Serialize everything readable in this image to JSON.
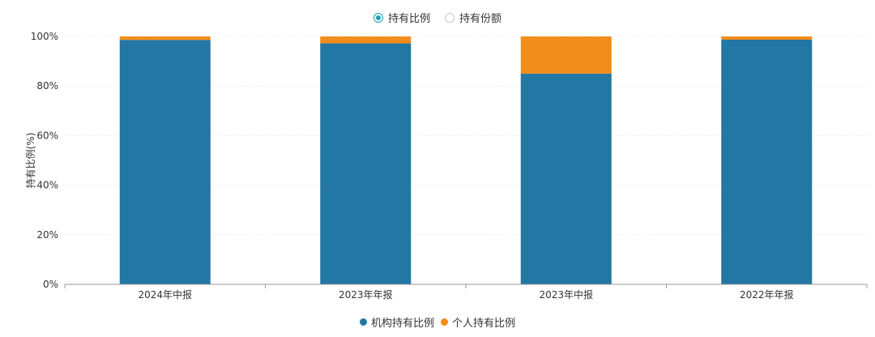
{
  "toggles": [
    {
      "label": "持有比例",
      "selected": true
    },
    {
      "label": "持有份额",
      "selected": false
    }
  ],
  "colors": {
    "institution": "#2277a4",
    "individual": "#f28c1c",
    "radio_active": "#1aa0b4"
  },
  "chart_data": {
    "type": "bar",
    "stacked": true,
    "categories": [
      "2024年中报",
      "2023年年报",
      "2023年中报",
      "2022年年报"
    ],
    "series": [
      {
        "name": "机构持有比例",
        "values": [
          98.6,
          97.2,
          85.0,
          98.7
        ]
      },
      {
        "name": "个人持有比例",
        "values": [
          1.4,
          2.8,
          15.0,
          1.3
        ]
      }
    ],
    "ylabel": "持有比例(%)",
    "ylim": [
      0,
      100
    ],
    "yticks": [
      "0%",
      "20%",
      "40%",
      "60%",
      "80%",
      "100%"
    ],
    "grid": true,
    "legend_position": "bottom"
  }
}
